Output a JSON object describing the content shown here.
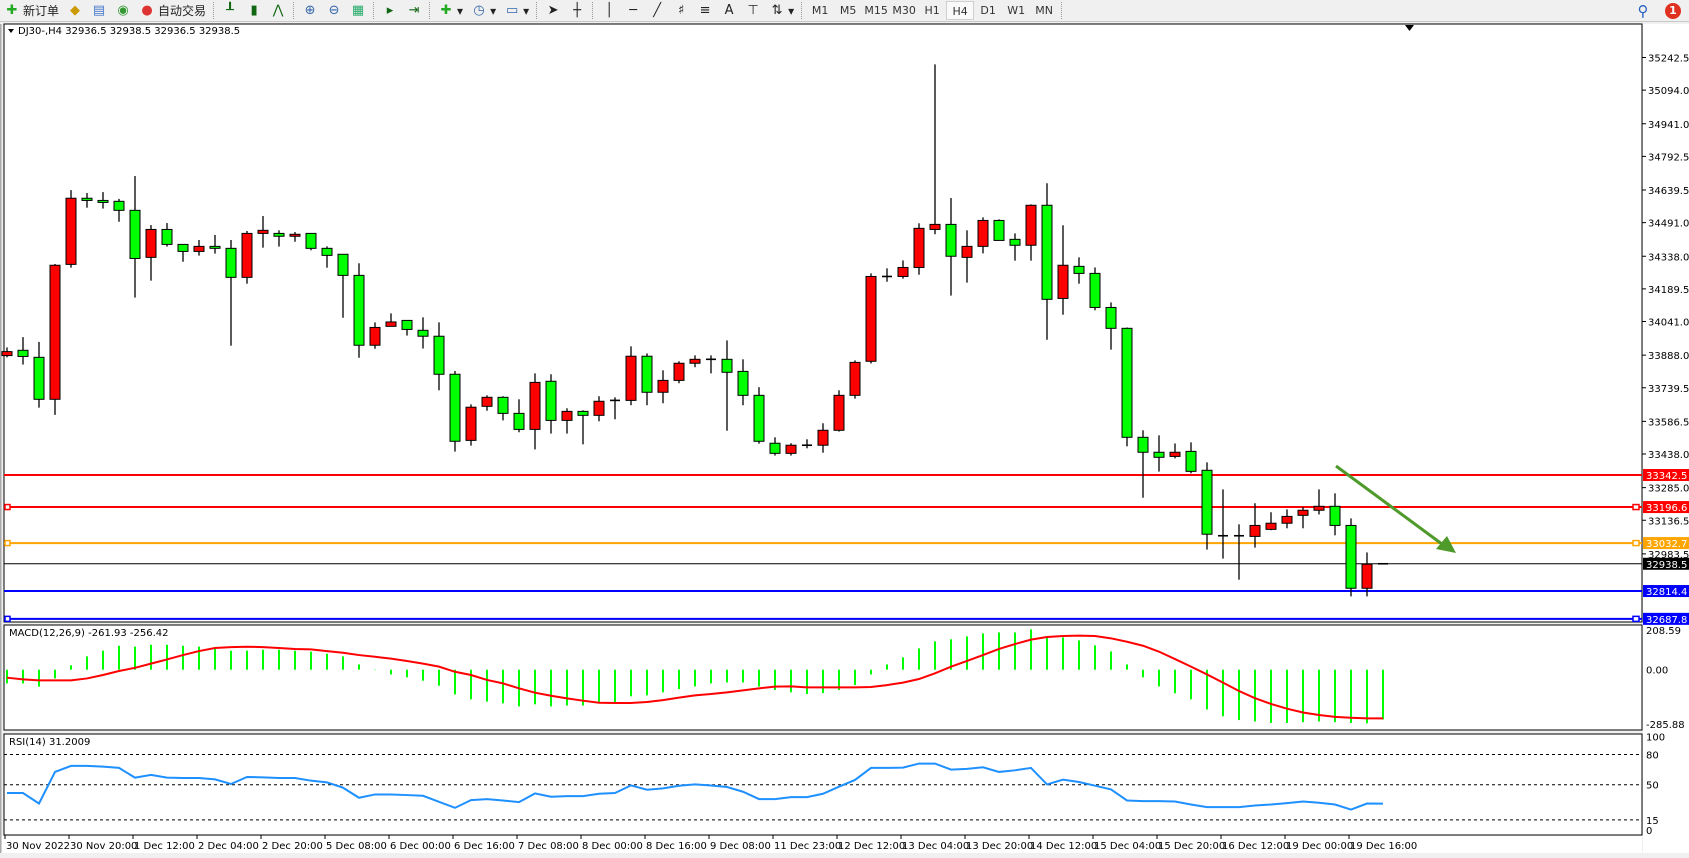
{
  "toolbar": {
    "new_order_label": "新订单",
    "auto_trading_label": "自动交易",
    "icons": [
      "new-order-icon",
      "market-watch-icon",
      "navigator-icon",
      "signals-icon",
      "auto-trading-icon",
      "bar-chart-icon",
      "candlestick-icon",
      "line-chart-icon",
      "zoom-in-icon",
      "zoom-out-icon",
      "tile-windows-icon",
      "chart-shift-icon",
      "autoscroll-icon",
      "indicators-icon",
      "periods-icon",
      "templates-icon",
      "cursor-icon",
      "crosshair-icon",
      "vertical-line-icon",
      "horizontal-line-icon",
      "trendline-icon",
      "fibonacci-icon",
      "fibonacci-fan-icon",
      "text-icon",
      "text-label-icon",
      "arrows-icon"
    ],
    "text_tool": "A",
    "timeframes": [
      "M1",
      "M5",
      "M15",
      "M30",
      "H1",
      "H4",
      "D1",
      "W1",
      "MN"
    ],
    "active_timeframe": "H4",
    "notification_count": "1"
  },
  "chart": {
    "header": "DJ30-,H4  32936.5 32938.5 32936.5 32938.5",
    "colors": {
      "bull": "#ff0000",
      "bear": "#00ff00",
      "macd_hist": "#00ff00",
      "macd_signal": "#ff0000",
      "rsi": "#1e90ff",
      "arrow": "#4e9a2a"
    },
    "price_ticks": [
      "35242.5",
      "35094.0",
      "34941.0",
      "34792.5",
      "34639.5",
      "34491.0",
      "34338.0",
      "34189.5",
      "34041.0",
      "33888.0",
      "33739.5",
      "33586.5",
      "33438.0",
      "33285.0",
      "33136.5",
      "32983.5"
    ],
    "levels": [
      {
        "price": "33342.5",
        "color": "#ff0000"
      },
      {
        "price": "33196.6",
        "color": "#ff0000"
      },
      {
        "price": "33032.7",
        "color": "#ffa500"
      },
      {
        "price": "32938.5",
        "color": "#000000"
      },
      {
        "price": "32814.4",
        "color": "#0000ff"
      },
      {
        "price": "32687.8",
        "color": "#0000ff"
      }
    ],
    "time_labels": [
      "30 Nov 2022",
      "30 Nov 20:00",
      "1 Dec 12:00",
      "2 Dec 04:00",
      "2 Dec 20:00",
      "5 Dec 08:00",
      "6 Dec 00:00",
      "6 Dec 16:00",
      "7 Dec 08:00",
      "8 Dec 00:00",
      "8 Dec 16:00",
      "9 Dec 08:00",
      "11 Dec 23:00",
      "12 Dec 12:00",
      "13 Dec 04:00",
      "13 Dec 20:00",
      "14 Dec 12:00",
      "15 Dec 04:00",
      "15 Dec 20:00",
      "16 Dec 12:00",
      "19 Dec 00:00",
      "19 Dec 16:00"
    ],
    "macd": {
      "label": "MACD(12,26,9) -261.93 -256.42",
      "ticks": [
        "208.59",
        "0.00",
        "-285.88"
      ]
    },
    "rsi": {
      "label": "RSI(14) 31.2009",
      "ticks": [
        "100",
        "80",
        "50",
        "15",
        "0"
      ]
    }
  },
  "chart_data": {
    "type": "candlestick",
    "ohlc": [
      [
        33886,
        33923,
        33878,
        33904
      ],
      [
        33910,
        33970,
        33845,
        33882
      ],
      [
        33878,
        33948,
        33649,
        33687
      ],
      [
        33687,
        34303,
        33616,
        34297
      ],
      [
        34301,
        34639,
        34286,
        34602
      ],
      [
        34602,
        34626,
        34559,
        34592
      ],
      [
        34592,
        34630,
        34555,
        34583
      ],
      [
        34588,
        34599,
        34495,
        34547
      ],
      [
        34547,
        34703,
        34150,
        34328
      ],
      [
        34333,
        34480,
        34227,
        34460
      ],
      [
        34460,
        34489,
        34382,
        34392
      ],
      [
        34392,
        34392,
        34313,
        34360
      ],
      [
        34360,
        34412,
        34341,
        34383
      ],
      [
        34383,
        34435,
        34350,
        34374
      ],
      [
        34374,
        34412,
        33931,
        34242
      ],
      [
        34242,
        34453,
        34213,
        34442
      ],
      [
        34442,
        34521,
        34377,
        34456
      ],
      [
        34442,
        34456,
        34382,
        34429
      ],
      [
        34429,
        34448,
        34404,
        34438
      ],
      [
        34442,
        34442,
        34365,
        34374
      ],
      [
        34374,
        34383,
        34286,
        34342
      ],
      [
        34347,
        34347,
        34058,
        34251
      ],
      [
        34251,
        34306,
        33876,
        33933
      ],
      [
        33933,
        34037,
        33917,
        34014
      ],
      [
        34019,
        34078,
        34019,
        34039
      ],
      [
        34046,
        34046,
        33977,
        34005
      ],
      [
        34001,
        34060,
        33918,
        33974
      ],
      [
        33974,
        34037,
        33728,
        33801
      ],
      [
        33801,
        33816,
        33449,
        33496
      ],
      [
        33500,
        33664,
        33476,
        33651
      ],
      [
        33655,
        33705,
        33635,
        33696
      ],
      [
        33696,
        33701,
        33591,
        33623
      ],
      [
        33623,
        33687,
        33537,
        33550
      ],
      [
        33550,
        33805,
        33459,
        33764
      ],
      [
        33769,
        33801,
        33531,
        33591
      ],
      [
        33591,
        33646,
        33531,
        33632
      ],
      [
        33632,
        33637,
        33482,
        33614
      ],
      [
        33614,
        33701,
        33587,
        33678
      ],
      [
        33678,
        33696,
        33596,
        33682
      ],
      [
        33682,
        33928,
        33660,
        33883
      ],
      [
        33883,
        33896,
        33660,
        33719
      ],
      [
        33719,
        33819,
        33669,
        33773
      ],
      [
        33773,
        33860,
        33760,
        33851
      ],
      [
        33851,
        33887,
        33833,
        33869
      ],
      [
        33869,
        33887,
        33805,
        33864
      ],
      [
        33869,
        33955,
        33544,
        33810
      ],
      [
        33814,
        33869,
        33660,
        33705
      ],
      [
        33705,
        33742,
        33485,
        33496
      ],
      [
        33487,
        33514,
        33431,
        33441
      ],
      [
        33441,
        33487,
        33431,
        33478
      ],
      [
        33478,
        33505,
        33464,
        33478
      ],
      [
        33478,
        33578,
        33444,
        33546
      ],
      [
        33546,
        33728,
        33540,
        33705
      ],
      [
        33705,
        33864,
        33690,
        33855
      ],
      [
        33860,
        34260,
        33850,
        34246
      ],
      [
        34246,
        34283,
        34222,
        34246
      ],
      [
        34246,
        34319,
        34236,
        34287
      ],
      [
        34287,
        34488,
        34254,
        34465
      ],
      [
        34460,
        35211,
        34438,
        34483
      ],
      [
        34483,
        34603,
        34159,
        34338
      ],
      [
        34333,
        34456,
        34218,
        34383
      ],
      [
        34383,
        34515,
        34351,
        34501
      ],
      [
        34501,
        34506,
        34410,
        34410
      ],
      [
        34415,
        34442,
        34318,
        34388
      ],
      [
        34388,
        34574,
        34318,
        34570
      ],
      [
        34570,
        34670,
        33958,
        34142
      ],
      [
        34146,
        34479,
        34072,
        34297
      ],
      [
        34292,
        34333,
        34213,
        34260
      ],
      [
        34260,
        34287,
        34092,
        34105
      ],
      [
        34105,
        34128,
        33913,
        34010
      ],
      [
        34010,
        34014,
        33473,
        33514
      ],
      [
        33514,
        33546,
        33239,
        33446
      ],
      [
        33446,
        33523,
        33358,
        33423
      ],
      [
        33427,
        33486,
        33418,
        33446
      ],
      [
        33450,
        33491,
        33350,
        33359
      ],
      [
        33364,
        33400,
        33003,
        33073
      ],
      [
        33066,
        33277,
        32962,
        33066
      ],
      [
        33066,
        33118,
        32866,
        33066
      ],
      [
        33063,
        33214,
        33012,
        33113
      ],
      [
        33095,
        33173,
        33091,
        33123
      ],
      [
        33123,
        33186,
        33100,
        33154
      ],
      [
        33159,
        33196,
        33100,
        33182
      ],
      [
        33182,
        33277,
        33163,
        33200
      ],
      [
        33200,
        33259,
        33068,
        33113
      ],
      [
        33113,
        33145,
        32790,
        32827
      ],
      [
        32827,
        32990,
        32790,
        32936.5
      ],
      [
        32936.5,
        32938.5,
        32936.5,
        32938.5
      ]
    ],
    "price_range": [
      32687.8,
      35300
    ],
    "macd_hist": [
      -72,
      -72,
      -89,
      -46,
      23,
      70,
      100,
      126,
      121,
      131,
      131,
      126,
      121,
      109,
      100,
      100,
      105,
      105,
      100,
      95,
      84,
      70,
      28,
      -2,
      -25,
      -40,
      -58,
      -84,
      -130,
      -156,
      -168,
      -177,
      -193,
      -182,
      -193,
      -188,
      -188,
      -177,
      -177,
      -140,
      -135,
      -119,
      -102,
      -88,
      -72,
      -67,
      -67,
      -89,
      -107,
      -119,
      -128,
      -123,
      -107,
      -81,
      -25,
      28,
      65,
      112,
      149,
      160,
      175,
      191,
      196,
      196,
      212,
      170,
      170,
      154,
      128,
      96,
      28,
      -40,
      -88,
      -124,
      -156,
      -209,
      -245,
      -265,
      -272,
      -280,
      -280,
      -276,
      -272,
      -276,
      -280,
      -282,
      -262
    ],
    "macd_signal": [
      -42,
      -51,
      -56,
      -56,
      -56,
      -46,
      -28,
      -7,
      10,
      32,
      54,
      77,
      98,
      114,
      119,
      121,
      119,
      114,
      109,
      107,
      98,
      89,
      77,
      68,
      58,
      46,
      32,
      16,
      -11,
      -28,
      -54,
      -72,
      -98,
      -121,
      -137,
      -151,
      -163,
      -174,
      -175,
      -175,
      -170,
      -160,
      -147,
      -135,
      -128,
      -119,
      -109,
      -98,
      -89,
      -88,
      -93,
      -93,
      -93,
      -93,
      -91,
      -81,
      -68,
      -49,
      -19,
      16,
      46,
      77,
      109,
      135,
      158,
      172,
      177,
      179,
      177,
      165,
      147,
      126,
      95,
      56,
      16,
      -25,
      -68,
      -112,
      -150,
      -180,
      -205,
      -225,
      -238,
      -248,
      -253,
      -256,
      -256
    ],
    "macd_range": [
      -285.88,
      208.59
    ],
    "rsi": [
      41.7,
      41.7,
      31.3,
      62.7,
      68.7,
      68.7,
      68,
      66.7,
      57,
      59.7,
      57,
      56.7,
      56.7,
      55.3,
      50.7,
      57.7,
      57.3,
      56.7,
      56.7,
      54,
      52.3,
      47,
      37,
      40.3,
      40.3,
      39.7,
      39,
      33,
      27,
      34.7,
      35.7,
      34.3,
      32.7,
      41.3,
      38,
      38.7,
      38.7,
      41,
      41.7,
      49.3,
      45,
      46.3,
      49,
      50.3,
      49.2,
      47.7,
      43,
      35.7,
      35.7,
      37.7,
      37.7,
      41,
      48,
      54.7,
      66.7,
      66.7,
      67,
      71,
      71,
      65,
      65.7,
      67.3,
      62.7,
      64.3,
      66.7,
      50.3,
      55,
      52.7,
      49,
      45.3,
      34.3,
      33.7,
      33.7,
      33.3,
      30.3,
      27.7,
      27.7,
      27.7,
      29.3,
      30.3,
      31.7,
      33.3,
      32,
      30.3,
      25.3,
      31.3,
      31.2
    ],
    "rsi_levels": [
      80,
      50,
      15
    ],
    "grid": false
  }
}
